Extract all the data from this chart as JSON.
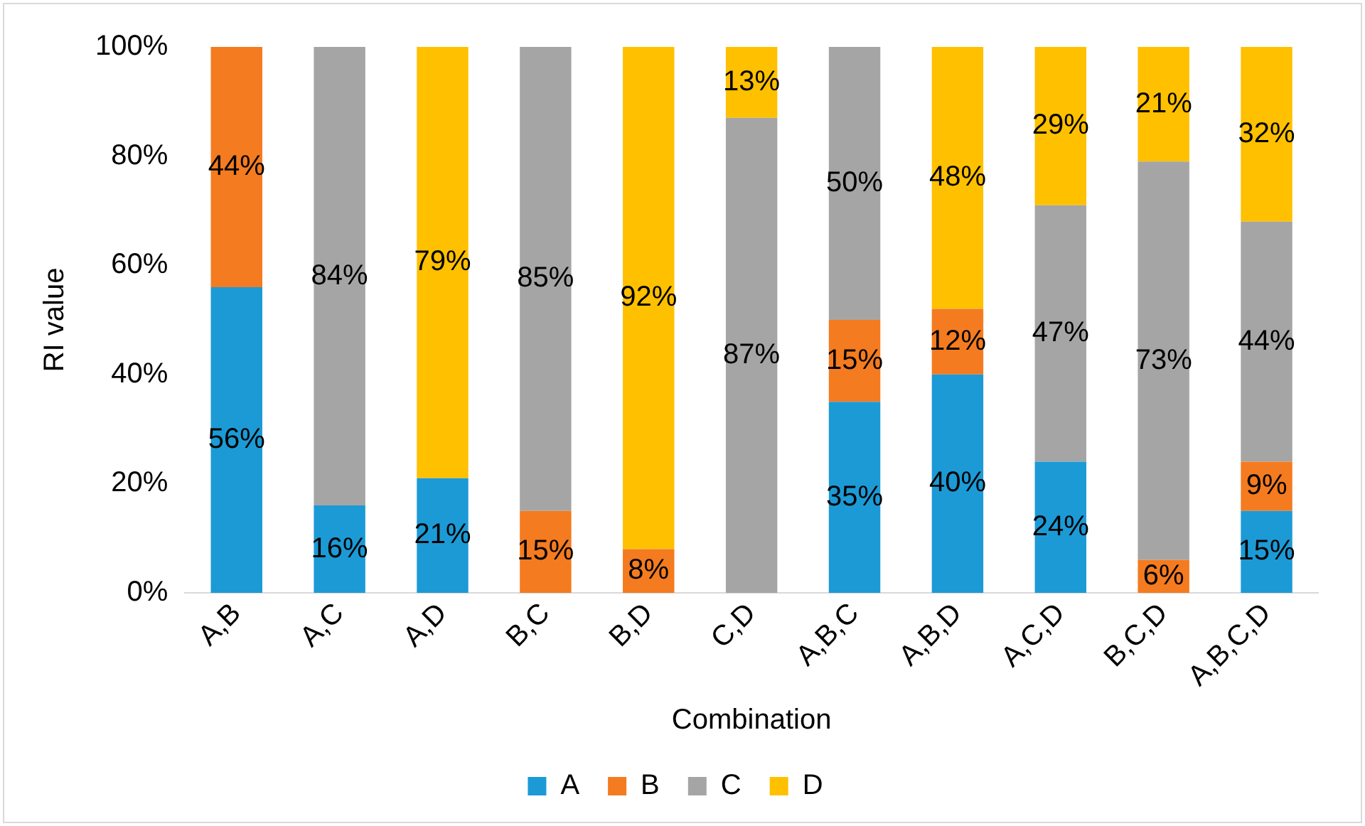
{
  "chart_data": {
    "type": "bar",
    "stacked": true,
    "xlabel": "Combination",
    "ylabel": "RI value",
    "categories": [
      "A,B",
      "A,C",
      "A,D",
      "B,C",
      "B,D",
      "C,D",
      "A,B,C",
      "A,B,D",
      "A,C,D",
      "B,C,D",
      "A,B,C,D"
    ],
    "series": [
      {
        "name": "A",
        "color": "#1c9ad6",
        "values": [
          56,
          16,
          21,
          0,
          0,
          0,
          35,
          40,
          24,
          0,
          15
        ],
        "value_labels": [
          "56%",
          "16%",
          "21%",
          null,
          null,
          null,
          "35%",
          "40%",
          "24%",
          null,
          "15%"
        ]
      },
      {
        "name": "B",
        "color": "#f47b20",
        "values": [
          44,
          0,
          0,
          15,
          8,
          0,
          15,
          12,
          0,
          6,
          9
        ],
        "value_labels": [
          "44%",
          null,
          null,
          "15%",
          "8%",
          null,
          "15%",
          "12%",
          null,
          "6%",
          "9%"
        ]
      },
      {
        "name": "C",
        "color": "#a5a5a5",
        "values": [
          0,
          84,
          0,
          85,
          0,
          87,
          50,
          0,
          47,
          73,
          44
        ],
        "value_labels": [
          null,
          "84%",
          null,
          "85%",
          null,
          "87%",
          "50%",
          null,
          "47%",
          "73%",
          "44%"
        ]
      },
      {
        "name": "D",
        "color": "#ffc000",
        "values": [
          0,
          0,
          79,
          0,
          92,
          13,
          0,
          48,
          29,
          21,
          32
        ],
        "value_labels": [
          null,
          null,
          "79%",
          null,
          "92%",
          "13%",
          null,
          "48%",
          "29%",
          "21%",
          "32%"
        ]
      }
    ],
    "ylim": [
      0,
      100
    ],
    "yticks": [
      {
        "value": 0,
        "label": "0%"
      },
      {
        "value": 20,
        "label": "20%"
      },
      {
        "value": 40,
        "label": "40%"
      },
      {
        "value": 60,
        "label": "60%"
      },
      {
        "value": 80,
        "label": "80%"
      },
      {
        "value": 100,
        "label": "100%"
      }
    ],
    "grid": false,
    "legend": "bottom"
  }
}
